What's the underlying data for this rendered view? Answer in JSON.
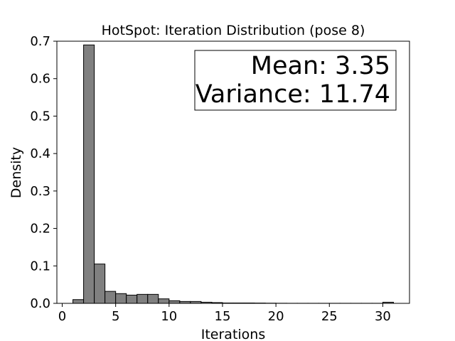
{
  "chart_data": {
    "type": "bar",
    "title": "HotSpot: Iteration Distribution (pose 8)",
    "xlabel": "Iterations",
    "ylabel": "Density",
    "xlim": [
      -0.5,
      32.5
    ],
    "ylim": [
      0,
      0.7
    ],
    "x_ticks": [
      0,
      5,
      10,
      15,
      20,
      25,
      30
    ],
    "y_ticks": [
      0.0,
      0.1,
      0.2,
      0.3,
      0.4,
      0.5,
      0.6,
      0.7
    ],
    "x_tick_labels": [
      "0",
      "5",
      "10",
      "15",
      "20",
      "25",
      "30"
    ],
    "y_tick_labels": [
      "0.0",
      "0.1",
      "0.2",
      "0.3",
      "0.4",
      "0.5",
      "0.6",
      "0.7"
    ],
    "bar_color": "#808080",
    "edge_color": "#000000",
    "bin_edges": [
      1,
      2,
      3,
      4,
      5,
      6,
      7,
      8,
      9,
      10,
      11,
      12,
      13,
      14,
      15,
      16,
      17,
      18,
      19,
      20,
      21,
      22,
      23,
      24,
      25,
      26,
      27,
      28,
      29,
      30,
      31
    ],
    "values": [
      0.01,
      0.69,
      0.105,
      0.032,
      0.026,
      0.022,
      0.024,
      0.024,
      0.012,
      0.007,
      0.005,
      0.005,
      0.003,
      0.002,
      0.001,
      0.001,
      0.001,
      0.0008,
      0.0005,
      0.0003,
      0.0002,
      0.0002,
      0.0002,
      0.0002,
      0.0002,
      0.0002,
      0.0002,
      0.0002,
      0.0002,
      0.003
    ],
    "annotation": {
      "lines": [
        "Mean: 3.35",
        "Variance: 11.74"
      ]
    },
    "grid": false,
    "legend": "none"
  }
}
